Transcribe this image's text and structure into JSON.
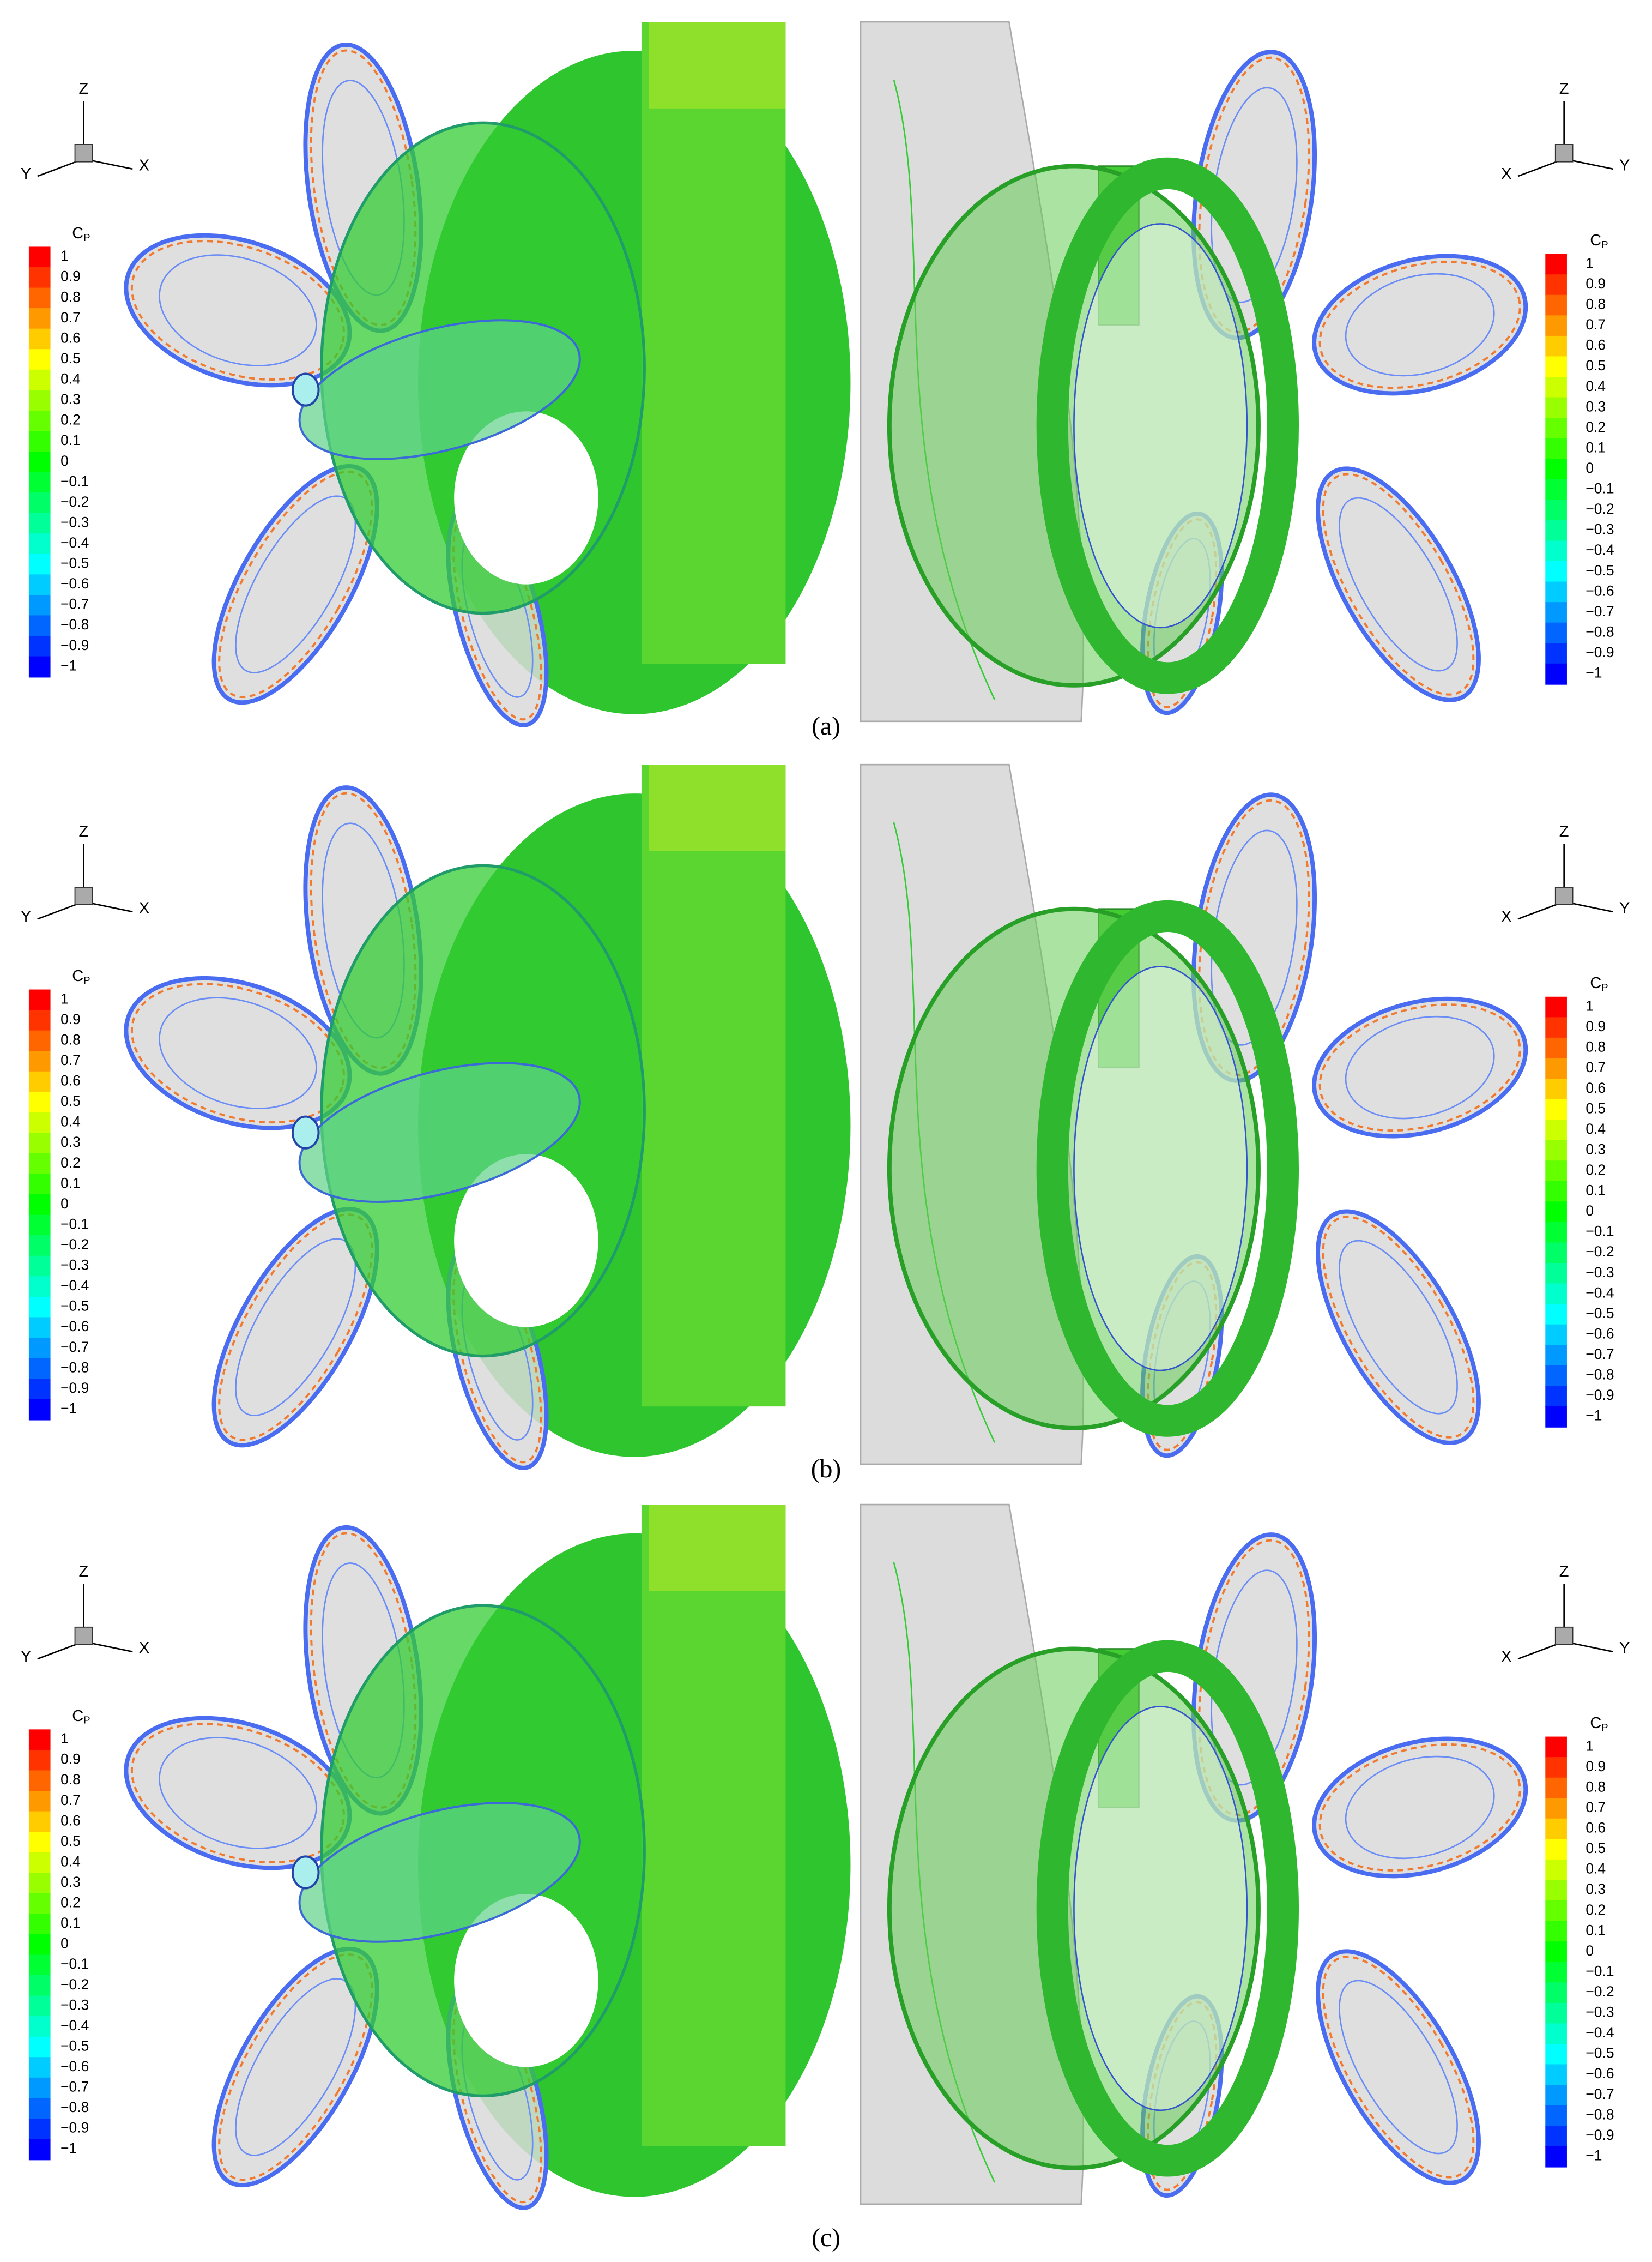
{
  "figure": {
    "panels": [
      {
        "label": "(a)"
      },
      {
        "label": "(b)"
      },
      {
        "label": "(c)"
      }
    ],
    "legend": {
      "title": "C",
      "subscript": "P",
      "levels": [
        "1",
        "0.9",
        "0.8",
        "0.7",
        "0.6",
        "0.5",
        "0.4",
        "0.3",
        "0.2",
        "0.1",
        "0",
        "−0.1",
        "−0.2",
        "−0.3",
        "−0.4",
        "−0.5",
        "−0.6",
        "−0.7",
        "−0.8",
        "−0.9",
        "−1"
      ]
    },
    "views": [
      {
        "up": "Z",
        "left": "Y",
        "right": "X"
      },
      {
        "up": "Z",
        "left": "X",
        "right": "Y"
      }
    ]
  }
}
